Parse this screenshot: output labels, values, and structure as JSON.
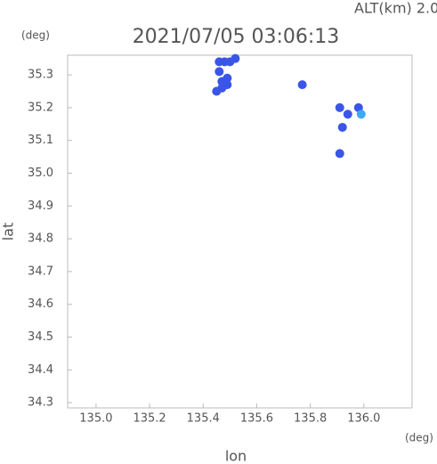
{
  "chart_data": {
    "type": "scatter",
    "header": "ALT(km) 2.0",
    "title": "2021/07/05 03:06:13",
    "y_unit": "(deg)",
    "x_unit": "(deg)",
    "xlabel": "lon",
    "ylabel": "lat",
    "xlim": [
      134.894,
      136.18
    ],
    "ylim": [
      34.284,
      35.36
    ],
    "xticks": [
      {
        "value": 135,
        "label": "135.0"
      },
      135.2,
      135.4,
      135.6,
      135.8,
      {
        "value": 136,
        "label": "136.0"
      }
    ],
    "yticks": [
      34.3,
      34.4,
      34.5,
      34.6,
      34.7,
      34.8,
      34.9,
      {
        "value": 35,
        "label": "35.0"
      },
      35.1,
      35.2,
      35.3
    ],
    "series": [
      {
        "color": "#3a55e8",
        "x": [
          135.46,
          135.47,
          135.49,
          135.47,
          135.45,
          135.49,
          135.77,
          135.91,
          135.94,
          135.98,
          135.92,
          135.91,
          135.46,
          135.48,
          135.5,
          135.52
        ],
        "y": [
          35.31,
          35.28,
          35.27,
          35.26,
          35.25,
          35.29,
          35.27,
          35.2,
          35.18,
          35.2,
          35.14,
          35.06,
          35.34,
          35.34,
          35.34,
          35.35
        ]
      },
      {
        "color": "#3fa8f0",
        "x": [
          135.99
        ],
        "y": [
          35.18
        ]
      }
    ]
  }
}
